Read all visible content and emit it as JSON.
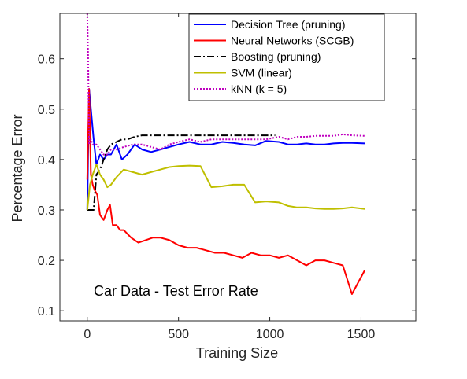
{
  "chart_data": {
    "type": "line",
    "title": "",
    "annotation": "Car Data - Test Error Rate",
    "xlabel": "Training Size",
    "ylabel": "Percentage Error",
    "xlim": [
      -150,
      1800
    ],
    "ylim": [
      0.08,
      0.69
    ],
    "xticks": [
      0,
      500,
      1000,
      1500
    ],
    "yticks": [
      0.1,
      0.2,
      0.3,
      0.4,
      0.5,
      0.6
    ],
    "legend_position": "top-right",
    "grid": false,
    "series": [
      {
        "name": "Decision Tree (pruning)",
        "color": "#0000ff",
        "style": "solid",
        "x": [
          0,
          10,
          20,
          35,
          50,
          70,
          90,
          110,
          130,
          160,
          190,
          220,
          260,
          300,
          350,
          400,
          450,
          500,
          560,
          620,
          680,
          740,
          800,
          860,
          920,
          980,
          1050,
          1100,
          1150,
          1200,
          1250,
          1300,
          1350,
          1400,
          1450,
          1520
        ],
        "y": [
          0.3,
          0.54,
          0.5,
          0.44,
          0.39,
          0.41,
          0.4,
          0.41,
          0.41,
          0.43,
          0.4,
          0.41,
          0.43,
          0.42,
          0.415,
          0.42,
          0.425,
          0.43,
          0.435,
          0.43,
          0.43,
          0.435,
          0.433,
          0.43,
          0.428,
          0.437,
          0.435,
          0.43,
          0.43,
          0.432,
          0.43,
          0.43,
          0.432,
          0.433,
          0.433,
          0.432
        ]
      },
      {
        "name": "Neural Networks (SCGB)",
        "color": "#ff0000",
        "style": "solid",
        "x": [
          0,
          10,
          20,
          30,
          40,
          55,
          70,
          90,
          110,
          125,
          140,
          160,
          180,
          200,
          240,
          280,
          320,
          360,
          400,
          450,
          500,
          550,
          600,
          650,
          700,
          750,
          800,
          850,
          900,
          950,
          1000,
          1050,
          1100,
          1150,
          1200,
          1250,
          1300,
          1350,
          1400,
          1450,
          1520
        ],
        "y": [
          0.36,
          0.54,
          0.37,
          0.35,
          0.34,
          0.33,
          0.29,
          0.28,
          0.3,
          0.31,
          0.27,
          0.27,
          0.26,
          0.26,
          0.245,
          0.235,
          0.24,
          0.245,
          0.245,
          0.24,
          0.23,
          0.225,
          0.225,
          0.22,
          0.215,
          0.215,
          0.21,
          0.205,
          0.215,
          0.21,
          0.21,
          0.205,
          0.21,
          0.2,
          0.19,
          0.2,
          0.2,
          0.195,
          0.19,
          0.133,
          0.18
        ]
      },
      {
        "name": "Boosting (pruning)",
        "color": "#000000",
        "style": "dashdot",
        "x": [
          0,
          10,
          20,
          35,
          50,
          70,
          90,
          110,
          130,
          160,
          190,
          220,
          260,
          300,
          400,
          500,
          600,
          700,
          800,
          900,
          1000,
          1030
        ],
        "y": [
          0.3,
          0.3,
          0.3,
          0.3,
          0.37,
          0.38,
          0.4,
          0.42,
          0.43,
          0.435,
          0.44,
          0.44,
          0.445,
          0.448,
          0.448,
          0.448,
          0.448,
          0.448,
          0.448,
          0.448,
          0.448,
          0.448
        ]
      },
      {
        "name": "SVM (linear)",
        "color": "#bfbf00",
        "style": "solid",
        "x": [
          0,
          15,
          30,
          50,
          70,
          90,
          110,
          130,
          160,
          200,
          250,
          300,
          350,
          400,
          450,
          500,
          560,
          620,
          680,
          740,
          800,
          860,
          920,
          980,
          1050,
          1100,
          1150,
          1200,
          1250,
          1300,
          1350,
          1400,
          1450,
          1520
        ],
        "y": [
          0.3,
          0.35,
          0.37,
          0.39,
          0.37,
          0.36,
          0.345,
          0.35,
          0.365,
          0.38,
          0.375,
          0.37,
          0.375,
          0.38,
          0.385,
          0.387,
          0.388,
          0.387,
          0.345,
          0.347,
          0.35,
          0.35,
          0.315,
          0.317,
          0.315,
          0.308,
          0.305,
          0.305,
          0.303,
          0.302,
          0.302,
          0.303,
          0.305,
          0.302
        ]
      },
      {
        "name": "kNN (k = 5)",
        "color": "#bf00bf",
        "style": "dotted",
        "x": [
          0,
          5,
          10,
          20,
          30,
          50,
          70,
          90,
          110,
          130,
          160,
          200,
          250,
          300,
          350,
          400,
          450,
          500,
          560,
          620,
          680,
          740,
          800,
          860,
          920,
          980,
          1050,
          1100,
          1150,
          1200,
          1250,
          1300,
          1350,
          1400,
          1450,
          1520
        ],
        "y": [
          0.69,
          0.6,
          0.43,
          0.44,
          0.43,
          0.43,
          0.42,
          0.41,
          0.41,
          0.42,
          0.42,
          0.425,
          0.43,
          0.43,
          0.425,
          0.42,
          0.43,
          0.435,
          0.44,
          0.435,
          0.44,
          0.44,
          0.44,
          0.44,
          0.44,
          0.44,
          0.445,
          0.44,
          0.445,
          0.445,
          0.447,
          0.447,
          0.447,
          0.45,
          0.448,
          0.447
        ]
      }
    ]
  }
}
